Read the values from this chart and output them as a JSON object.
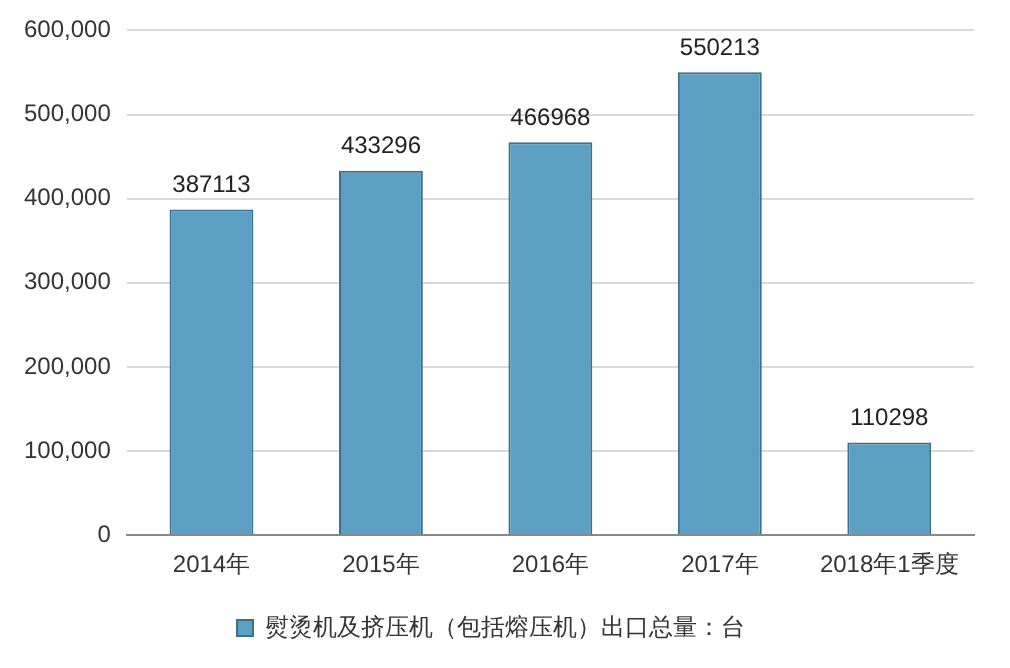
{
  "chart_data": {
    "type": "bar",
    "categories": [
      "2014年",
      "2015年",
      "2016年",
      "2017年",
      "2018年1季度"
    ],
    "series": [
      {
        "name": "熨烫机及挤压机（包括熔压机）出口总量：台",
        "color": "#5b9fc2",
        "values": [
          387113,
          433296,
          466968,
          550213,
          110298
        ]
      }
    ],
    "ylim": [
      0,
      600000
    ],
    "yticks": [
      {
        "value": 0,
        "label": "0"
      },
      {
        "value": 100000,
        "label": "100,000"
      },
      {
        "value": 200000,
        "label": "200,000"
      },
      {
        "value": 300000,
        "label": "300,000"
      },
      {
        "value": 400000,
        "label": "400,000"
      },
      {
        "value": 500000,
        "label": "500,000"
      },
      {
        "value": 600000,
        "label": "600,000"
      }
    ],
    "grid": "y",
    "legend": "bottom",
    "data_labels": true
  }
}
